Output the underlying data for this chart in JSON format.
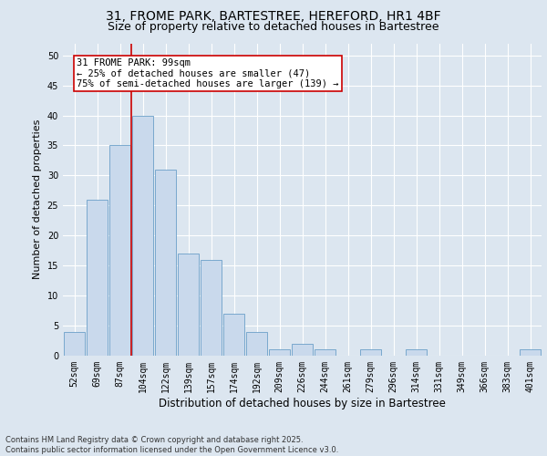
{
  "title_line1": "31, FROME PARK, BARTESTREE, HEREFORD, HR1 4BF",
  "title_line2": "Size of property relative to detached houses in Bartestree",
  "xlabel": "Distribution of detached houses by size in Bartestree",
  "ylabel": "Number of detached properties",
  "categories": [
    "52sqm",
    "69sqm",
    "87sqm",
    "104sqm",
    "122sqm",
    "139sqm",
    "157sqm",
    "174sqm",
    "192sqm",
    "209sqm",
    "226sqm",
    "244sqm",
    "261sqm",
    "279sqm",
    "296sqm",
    "314sqm",
    "331sqm",
    "349sqm",
    "366sqm",
    "383sqm",
    "401sqm"
  ],
  "values": [
    4,
    26,
    35,
    40,
    31,
    17,
    16,
    7,
    4,
    1,
    2,
    1,
    0,
    1,
    0,
    1,
    0,
    0,
    0,
    0,
    1
  ],
  "bar_color": "#c9d9ec",
  "bar_edge_color": "#6a9fc8",
  "red_line_x": 2.5,
  "annotation_text": "31 FROME PARK: 99sqm\n← 25% of detached houses are smaller (47)\n75% of semi-detached houses are larger (139) →",
  "annotation_box_color": "#ffffff",
  "annotation_box_edge": "#cc0000",
  "ylim": [
    0,
    52
  ],
  "yticks": [
    0,
    5,
    10,
    15,
    20,
    25,
    30,
    35,
    40,
    45,
    50
  ],
  "background_color": "#dce6f0",
  "plot_bg_color": "#dce6f0",
  "footer_text": "Contains HM Land Registry data © Crown copyright and database right 2025.\nContains public sector information licensed under the Open Government Licence v3.0.",
  "title_fontsize": 10,
  "subtitle_fontsize": 9,
  "tick_fontsize": 7,
  "xlabel_fontsize": 8.5,
  "ylabel_fontsize": 8,
  "annot_fontsize": 7.5,
  "footer_fontsize": 6
}
